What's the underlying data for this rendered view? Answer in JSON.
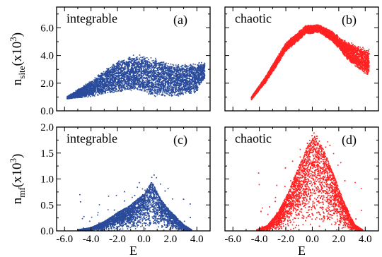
{
  "chart_data": [
    {
      "panel": "(a)",
      "label": "integrable",
      "type": "scatter",
      "ylabel_main": "n",
      "ylabel_sub": "site",
      "ylabel_tail": "(x10",
      "ylabel_sup": "3",
      "ylabel_close": ")",
      "xlim": [
        -6.6,
        5.0
      ],
      "ylim": [
        0.0,
        7.5
      ],
      "yticks": [
        "0.0",
        "2.0",
        "4.0",
        "6.0"
      ],
      "ytick_values": [
        0.0,
        2.0,
        4.0,
        6.0
      ],
      "color": "#2a4b9b",
      "shape": {
        "kind": "band",
        "x_range": [
          -5.8,
          4.6
        ],
        "center": [
          [
            -5.8,
            0.95
          ],
          [
            -4.0,
            1.6
          ],
          [
            -2.0,
            2.5
          ],
          [
            -0.5,
            2.8
          ],
          [
            1.0,
            2.4
          ],
          [
            2.5,
            2.2
          ],
          [
            4.0,
            2.4
          ],
          [
            4.6,
            2.9
          ]
        ],
        "halfwidth": [
          [
            -5.8,
            0.1
          ],
          [
            -4.0,
            0.6
          ],
          [
            -2.0,
            1.2
          ],
          [
            -0.5,
            1.35
          ],
          [
            1.0,
            1.4
          ],
          [
            2.5,
            1.2
          ],
          [
            4.0,
            1.1
          ],
          [
            4.6,
            0.6
          ]
        ]
      }
    },
    {
      "panel": "(b)",
      "label": "chaotic",
      "type": "scatter",
      "xlim": [
        -6.6,
        5.0
      ],
      "ylim": [
        0.0,
        7.5
      ],
      "color": "#ff2222",
      "shape": {
        "kind": "band",
        "x_range": [
          -4.6,
          4.3
        ],
        "center": [
          [
            -4.6,
            0.9
          ],
          [
            -3.5,
            2.3
          ],
          [
            -2.0,
            4.6
          ],
          [
            -0.5,
            5.85
          ],
          [
            0.5,
            5.95
          ],
          [
            1.5,
            5.4
          ],
          [
            2.8,
            4.2
          ],
          [
            3.6,
            3.8
          ],
          [
            4.3,
            3.5
          ]
        ],
        "halfwidth": [
          [
            -4.6,
            0.12
          ],
          [
            -3.0,
            0.3
          ],
          [
            -1.0,
            0.35
          ],
          [
            0.5,
            0.3
          ],
          [
            2.0,
            0.45
          ],
          [
            3.0,
            0.8
          ],
          [
            4.3,
            1.0
          ]
        ]
      }
    },
    {
      "panel": "(c)",
      "label": "integrable",
      "type": "scatter",
      "ylabel_main": "n",
      "ylabel_sub": "mf",
      "ylabel_tail": "(x10",
      "ylabel_sup": "3",
      "ylabel_close": ")",
      "xlabel": "E",
      "xlim": [
        -6.6,
        5.0
      ],
      "ylim": [
        0.0,
        2.0
      ],
      "xticks": [
        "-6.0",
        "-4.0",
        "-2.0",
        "0.0",
        "2.0",
        "4.0"
      ],
      "xtick_values": [
        -6.0,
        -4.0,
        -2.0,
        0.0,
        2.0,
        4.0
      ],
      "yticks": [
        "0.0",
        "0.5",
        "1.0",
        "1.5",
        "2.0"
      ],
      "ytick_values": [
        0.0,
        0.5,
        1.0,
        1.5,
        2.0
      ],
      "color": "#2a4b9b",
      "shape": {
        "kind": "peak",
        "x_range": [
          -5.0,
          3.6
        ],
        "envelope": [
          [
            -5.0,
            0.02
          ],
          [
            -4.0,
            0.06
          ],
          [
            -3.0,
            0.18
          ],
          [
            -2.0,
            0.35
          ],
          [
            -1.0,
            0.5
          ],
          [
            0.0,
            0.72
          ],
          [
            0.6,
            0.95
          ],
          [
            1.3,
            0.6
          ],
          [
            2.0,
            0.38
          ],
          [
            3.0,
            0.12
          ],
          [
            3.6,
            0.02
          ]
        ],
        "spike_max": 1.22
      }
    },
    {
      "panel": "(d)",
      "label": "chaotic",
      "type": "scatter",
      "xlabel": "E",
      "xlim": [
        -6.6,
        5.0
      ],
      "ylim": [
        0.0,
        2.0
      ],
      "xticks": [
        "-6.0",
        "-4.0",
        "-2.0",
        "0.0",
        "2.0",
        "4.0"
      ],
      "xtick_values": [
        -6.0,
        -4.0,
        -2.0,
        0.0,
        2.0,
        4.0
      ],
      "color": "#ff2222",
      "shape": {
        "kind": "peak",
        "x_range": [
          -4.2,
          3.8
        ],
        "envelope": [
          [
            -4.2,
            0.02
          ],
          [
            -3.4,
            0.1
          ],
          [
            -2.6,
            0.35
          ],
          [
            -1.8,
            0.75
          ],
          [
            -1.0,
            1.25
          ],
          [
            -0.4,
            1.62
          ],
          [
            0.2,
            1.85
          ],
          [
            0.8,
            1.6
          ],
          [
            1.6,
            1.1
          ],
          [
            2.4,
            0.55
          ],
          [
            3.2,
            0.12
          ],
          [
            3.8,
            0.02
          ]
        ],
        "spike_max": 1.95
      }
    }
  ]
}
